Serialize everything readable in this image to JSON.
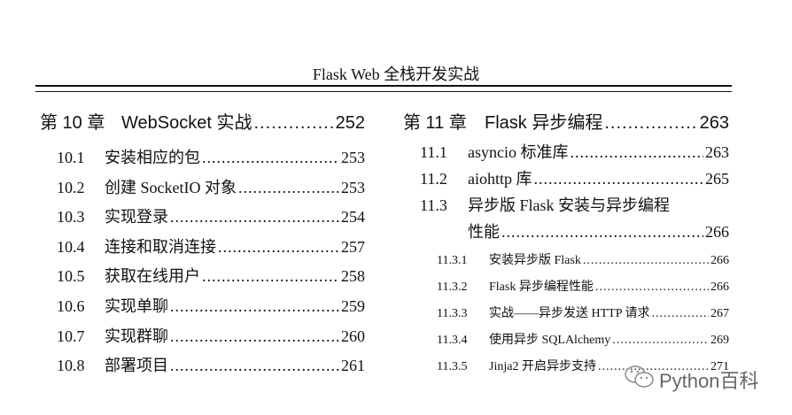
{
  "header": {
    "title": "Flask Web 全栈开发实战"
  },
  "left": {
    "chapter": {
      "num": "第 10 章",
      "title": "WebSocket 实战",
      "page": "252"
    },
    "sections": [
      {
        "num": "10.1",
        "title": "安装相应的包",
        "page": "253"
      },
      {
        "num": "10.2",
        "title": "创建 SocketIO 对象",
        "page": "253"
      },
      {
        "num": "10.3",
        "title": "实现登录",
        "page": "254"
      },
      {
        "num": "10.4",
        "title": "连接和取消连接",
        "page": "257"
      },
      {
        "num": "10.5",
        "title": "获取在线用户",
        "page": "258"
      },
      {
        "num": "10.6",
        "title": "实现单聊",
        "page": "259"
      },
      {
        "num": "10.7",
        "title": "实现群聊",
        "page": "260"
      },
      {
        "num": "10.8",
        "title": "部署项目",
        "page": "261"
      }
    ]
  },
  "right": {
    "chapter": {
      "num": "第 11 章",
      "title": "Flask 异步编程",
      "page": "263"
    },
    "sections": [
      {
        "num": "11.1",
        "title": "asyncio 标准库",
        "page": "263"
      },
      {
        "num": "11.2",
        "title": "aiohttp 库",
        "page": "265"
      },
      {
        "num": "11.3",
        "title": "异步版 Flask 安装与异步编程",
        "title2": "性能",
        "page": "266"
      }
    ],
    "subsections": [
      {
        "num": "11.3.1",
        "title": "安装异步版 Flask",
        "page": "266"
      },
      {
        "num": "11.3.2",
        "title": "Flask 异步编程性能",
        "page": "266"
      },
      {
        "num": "11.3.3",
        "title": "实战——异步发送 HTTP 请求",
        "page": "267"
      },
      {
        "num": "11.3.4",
        "title": "使用异步 SQLAlchemy",
        "page": "269"
      },
      {
        "num": "11.3.5",
        "title": "Jinja2 开启异步支持",
        "page": "271"
      }
    ]
  },
  "watermark": {
    "text": "Python百科",
    "icon": "wechat-icon"
  }
}
